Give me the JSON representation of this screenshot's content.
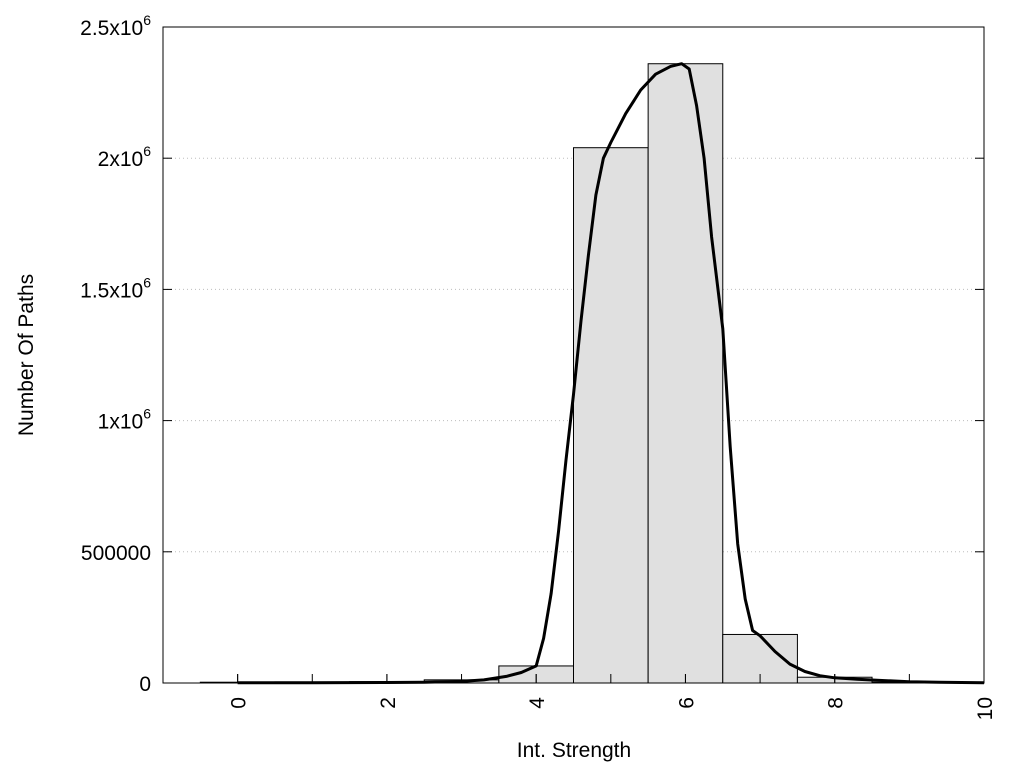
{
  "chart_data": {
    "type": "bar",
    "title": "",
    "xlabel": "Int. Strength",
    "ylabel": "Number Of Paths",
    "xlim": [
      -1,
      10
    ],
    "ylim": [
      0,
      2500000
    ],
    "grid": true,
    "legend": "none",
    "x_ticks": [
      {
        "value": 0,
        "label": "0"
      },
      {
        "value": 2,
        "label": "2"
      },
      {
        "value": 4,
        "label": "4"
      },
      {
        "value": 6,
        "label": "6"
      },
      {
        "value": 8,
        "label": "8"
      },
      {
        "value": 10,
        "label": "10"
      }
    ],
    "y_ticks": [
      {
        "value": 0,
        "base": "0",
        "exp": ""
      },
      {
        "value": 500000,
        "base": "500000",
        "exp": ""
      },
      {
        "value": 1000000,
        "base": "1x10",
        "exp": "6"
      },
      {
        "value": 1500000,
        "base": "1.5x10",
        "exp": "6"
      },
      {
        "value": 2000000,
        "base": "2x10",
        "exp": "6"
      },
      {
        "value": 2500000,
        "base": "2.5x10",
        "exp": "6"
      }
    ],
    "bar_width": 1,
    "bars": {
      "x": [
        0,
        1,
        2,
        3,
        4,
        5,
        6,
        7,
        8,
        9
      ],
      "values": [
        3000,
        4000,
        5000,
        12000,
        65000,
        2040000,
        2360000,
        185000,
        22000,
        3000
      ]
    },
    "curve": {
      "x": [
        0,
        0.5,
        1,
        1.5,
        2,
        2.5,
        3,
        3.3,
        3.6,
        3.8,
        4.0,
        4.1,
        4.2,
        4.3,
        4.4,
        4.5,
        4.6,
        4.7,
        4.8,
        4.9,
        5.0,
        5.2,
        5.4,
        5.6,
        5.8,
        5.95,
        6.05,
        6.15,
        6.25,
        6.35,
        6.5,
        6.6,
        6.7,
        6.8,
        6.9,
        7.0,
        7.2,
        7.4,
        7.6,
        7.8,
        8.0,
        8.3,
        8.6,
        9.0,
        9.4,
        9.7,
        10.0
      ],
      "y": [
        1000,
        1000,
        1000,
        1500,
        2000,
        3000,
        6000,
        12000,
        25000,
        40000,
        65000,
        170000,
        340000,
        580000,
        850000,
        1100000,
        1380000,
        1630000,
        1860000,
        2000000,
        2060000,
        2170000,
        2260000,
        2320000,
        2350000,
        2360000,
        2340000,
        2200000,
        2000000,
        1700000,
        1350000,
        900000,
        530000,
        320000,
        200000,
        180000,
        120000,
        72000,
        44000,
        28000,
        20000,
        14000,
        10000,
        5000,
        3000,
        2000,
        1000
      ]
    }
  }
}
